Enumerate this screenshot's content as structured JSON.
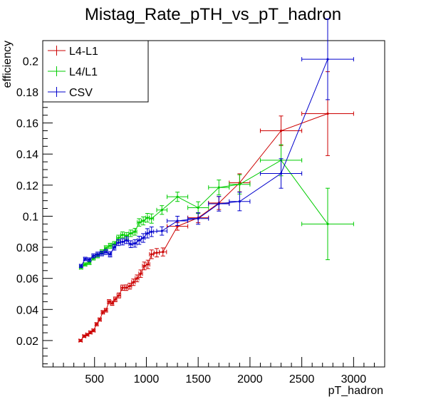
{
  "chart_data": {
    "type": "line",
    "title": "Mistag_Rate_pTH_vs_pT_hadron",
    "xlabel": "pT_hadron",
    "ylabel": "efficiency",
    "xlim": [
      0,
      3300
    ],
    "ylim": [
      0.003,
      0.213
    ],
    "grid": false,
    "legend_position": "top-left",
    "x_ticks": [
      500,
      1000,
      1500,
      2000,
      2500,
      3000
    ],
    "x_tick_labels": [
      "500",
      "1000",
      "1500",
      "2000",
      "2500",
      "3000"
    ],
    "y_ticks": [
      0.02,
      0.04,
      0.06,
      0.08,
      0.1,
      0.12,
      0.14,
      0.16,
      0.18,
      0.2
    ],
    "y_tick_labels": [
      "0.02",
      "0.04",
      "0.06",
      "0.08",
      "0.1",
      "0.12",
      "0.14",
      "0.16",
      "0.18",
      "0.2"
    ],
    "series": [
      {
        "name": "L4-L1",
        "color": "#cc0000",
        "points": [
          {
            "x": 365,
            "y": 0.02,
            "xerr": 15,
            "yerr": 0.0007
          },
          {
            "x": 400,
            "y": 0.0228,
            "xerr": 15,
            "yerr": 0.0008
          },
          {
            "x": 430,
            "y": 0.0238,
            "xerr": 15,
            "yerr": 0.0008
          },
          {
            "x": 460,
            "y": 0.0252,
            "xerr": 15,
            "yerr": 0.0009
          },
          {
            "x": 490,
            "y": 0.0265,
            "xerr": 15,
            "yerr": 0.0009
          },
          {
            "x": 520,
            "y": 0.0305,
            "xerr": 15,
            "yerr": 0.001
          },
          {
            "x": 550,
            "y": 0.0335,
            "xerr": 15,
            "yerr": 0.001
          },
          {
            "x": 580,
            "y": 0.0382,
            "xerr": 15,
            "yerr": 0.0011
          },
          {
            "x": 610,
            "y": 0.0395,
            "xerr": 15,
            "yerr": 0.0012
          },
          {
            "x": 640,
            "y": 0.045,
            "xerr": 15,
            "yerr": 0.0013
          },
          {
            "x": 670,
            "y": 0.044,
            "xerr": 15,
            "yerr": 0.0014
          },
          {
            "x": 700,
            "y": 0.0465,
            "xerr": 15,
            "yerr": 0.0015
          },
          {
            "x": 735,
            "y": 0.049,
            "xerr": 18,
            "yerr": 0.0016
          },
          {
            "x": 770,
            "y": 0.054,
            "xerr": 18,
            "yerr": 0.0017
          },
          {
            "x": 805,
            "y": 0.054,
            "xerr": 18,
            "yerr": 0.0018
          },
          {
            "x": 840,
            "y": 0.055,
            "xerr": 18,
            "yerr": 0.0019
          },
          {
            "x": 875,
            "y": 0.0575,
            "xerr": 18,
            "yerr": 0.0021
          },
          {
            "x": 910,
            "y": 0.06,
            "xerr": 18,
            "yerr": 0.0022
          },
          {
            "x": 945,
            "y": 0.063,
            "xerr": 18,
            "yerr": 0.0024
          },
          {
            "x": 980,
            "y": 0.068,
            "xerr": 18,
            "yerr": 0.0025
          },
          {
            "x": 1015,
            "y": 0.069,
            "xerr": 18,
            "yerr": 0.0027
          },
          {
            "x": 1050,
            "y": 0.0755,
            "xerr": 20,
            "yerr": 0.0028
          },
          {
            "x": 1100,
            "y": 0.0765,
            "xerr": 25,
            "yerr": 0.0027
          },
          {
            "x": 1160,
            "y": 0.077,
            "xerr": 35,
            "yerr": 0.0026
          },
          {
            "x": 1300,
            "y": 0.0935,
            "xerr": 100,
            "yerr": 0.0025
          },
          {
            "x": 1500,
            "y": 0.099,
            "xerr": 100,
            "yerr": 0.0032
          },
          {
            "x": 1700,
            "y": 0.1085,
            "xerr": 100,
            "yerr": 0.0042
          },
          {
            "x": 1900,
            "y": 0.1215,
            "xerr": 100,
            "yerr": 0.0058
          },
          {
            "x": 2300,
            "y": 0.155,
            "xerr": 200,
            "yerr": 0.0095
          },
          {
            "x": 2750,
            "y": 0.166,
            "xerr": 250,
            "yerr": 0.027
          }
        ]
      },
      {
        "name": "L4/L1",
        "color": "#00cc00",
        "points": [
          {
            "x": 370,
            "y": 0.067,
            "xerr": 15,
            "yerr": 0.001
          },
          {
            "x": 410,
            "y": 0.069,
            "xerr": 15,
            "yerr": 0.001
          },
          {
            "x": 450,
            "y": 0.07,
            "xerr": 15,
            "yerr": 0.0011
          },
          {
            "x": 490,
            "y": 0.073,
            "xerr": 15,
            "yerr": 0.0012
          },
          {
            "x": 530,
            "y": 0.0745,
            "xerr": 15,
            "yerr": 0.0013
          },
          {
            "x": 570,
            "y": 0.077,
            "xerr": 15,
            "yerr": 0.0014
          },
          {
            "x": 610,
            "y": 0.0795,
            "xerr": 15,
            "yerr": 0.0015
          },
          {
            "x": 650,
            "y": 0.081,
            "xerr": 15,
            "yerr": 0.0016
          },
          {
            "x": 690,
            "y": 0.082,
            "xerr": 15,
            "yerr": 0.0017
          },
          {
            "x": 730,
            "y": 0.086,
            "xerr": 18,
            "yerr": 0.0018
          },
          {
            "x": 770,
            "y": 0.088,
            "xerr": 18,
            "yerr": 0.0019
          },
          {
            "x": 810,
            "y": 0.0875,
            "xerr": 18,
            "yerr": 0.002
          },
          {
            "x": 850,
            "y": 0.089,
            "xerr": 18,
            "yerr": 0.0021
          },
          {
            "x": 890,
            "y": 0.09,
            "xerr": 18,
            "yerr": 0.0022
          },
          {
            "x": 930,
            "y": 0.096,
            "xerr": 18,
            "yerr": 0.0024
          },
          {
            "x": 970,
            "y": 0.097,
            "xerr": 18,
            "yerr": 0.0026
          },
          {
            "x": 1010,
            "y": 0.099,
            "xerr": 18,
            "yerr": 0.0028
          },
          {
            "x": 1050,
            "y": 0.0985,
            "xerr": 20,
            "yerr": 0.003
          },
          {
            "x": 1150,
            "y": 0.104,
            "xerr": 50,
            "yerr": 0.0028
          },
          {
            "x": 1300,
            "y": 0.1125,
            "xerr": 100,
            "yerr": 0.003
          },
          {
            "x": 1500,
            "y": 0.1055,
            "xerr": 100,
            "yerr": 0.0038
          },
          {
            "x": 1700,
            "y": 0.1185,
            "xerr": 100,
            "yerr": 0.0048
          },
          {
            "x": 1900,
            "y": 0.1205,
            "xerr": 100,
            "yerr": 0.0062
          },
          {
            "x": 2300,
            "y": 0.136,
            "xerr": 200,
            "yerr": 0.01
          },
          {
            "x": 2750,
            "y": 0.095,
            "xerr": 250,
            "yerr": 0.023
          }
        ]
      },
      {
        "name": "CSV",
        "color": "#0000cc",
        "points": [
          {
            "x": 370,
            "y": 0.068,
            "xerr": 15,
            "yerr": 0.001
          },
          {
            "x": 410,
            "y": 0.0725,
            "xerr": 15,
            "yerr": 0.0011
          },
          {
            "x": 450,
            "y": 0.072,
            "xerr": 15,
            "yerr": 0.0012
          },
          {
            "x": 490,
            "y": 0.0745,
            "xerr": 15,
            "yerr": 0.0013
          },
          {
            "x": 530,
            "y": 0.0755,
            "xerr": 15,
            "yerr": 0.0014
          },
          {
            "x": 570,
            "y": 0.076,
            "xerr": 15,
            "yerr": 0.0015
          },
          {
            "x": 610,
            "y": 0.077,
            "xerr": 15,
            "yerr": 0.0016
          },
          {
            "x": 650,
            "y": 0.0755,
            "xerr": 15,
            "yerr": 0.0017
          },
          {
            "x": 690,
            "y": 0.08,
            "xerr": 15,
            "yerr": 0.0018
          },
          {
            "x": 730,
            "y": 0.083,
            "xerr": 18,
            "yerr": 0.0019
          },
          {
            "x": 770,
            "y": 0.0835,
            "xerr": 18,
            "yerr": 0.002
          },
          {
            "x": 810,
            "y": 0.0845,
            "xerr": 18,
            "yerr": 0.0021
          },
          {
            "x": 850,
            "y": 0.082,
            "xerr": 18,
            "yerr": 0.0022
          },
          {
            "x": 890,
            "y": 0.0825,
            "xerr": 18,
            "yerr": 0.0024
          },
          {
            "x": 930,
            "y": 0.0845,
            "xerr": 18,
            "yerr": 0.0026
          },
          {
            "x": 970,
            "y": 0.086,
            "xerr": 18,
            "yerr": 0.0028
          },
          {
            "x": 1010,
            "y": 0.089,
            "xerr": 18,
            "yerr": 0.003
          },
          {
            "x": 1050,
            "y": 0.09,
            "xerr": 20,
            "yerr": 0.0031
          },
          {
            "x": 1150,
            "y": 0.0905,
            "xerr": 50,
            "yerr": 0.0027
          },
          {
            "x": 1300,
            "y": 0.097,
            "xerr": 100,
            "yerr": 0.003
          },
          {
            "x": 1500,
            "y": 0.0985,
            "xerr": 100,
            "yerr": 0.0037
          },
          {
            "x": 1700,
            "y": 0.108,
            "xerr": 100,
            "yerr": 0.0047
          },
          {
            "x": 1900,
            "y": 0.1095,
            "xerr": 100,
            "yerr": 0.006
          },
          {
            "x": 2300,
            "y": 0.1275,
            "xerr": 200,
            "yerr": 0.0095
          },
          {
            "x": 2750,
            "y": 0.201,
            "xerr": 250,
            "yerr": 0.026
          }
        ]
      }
    ]
  }
}
